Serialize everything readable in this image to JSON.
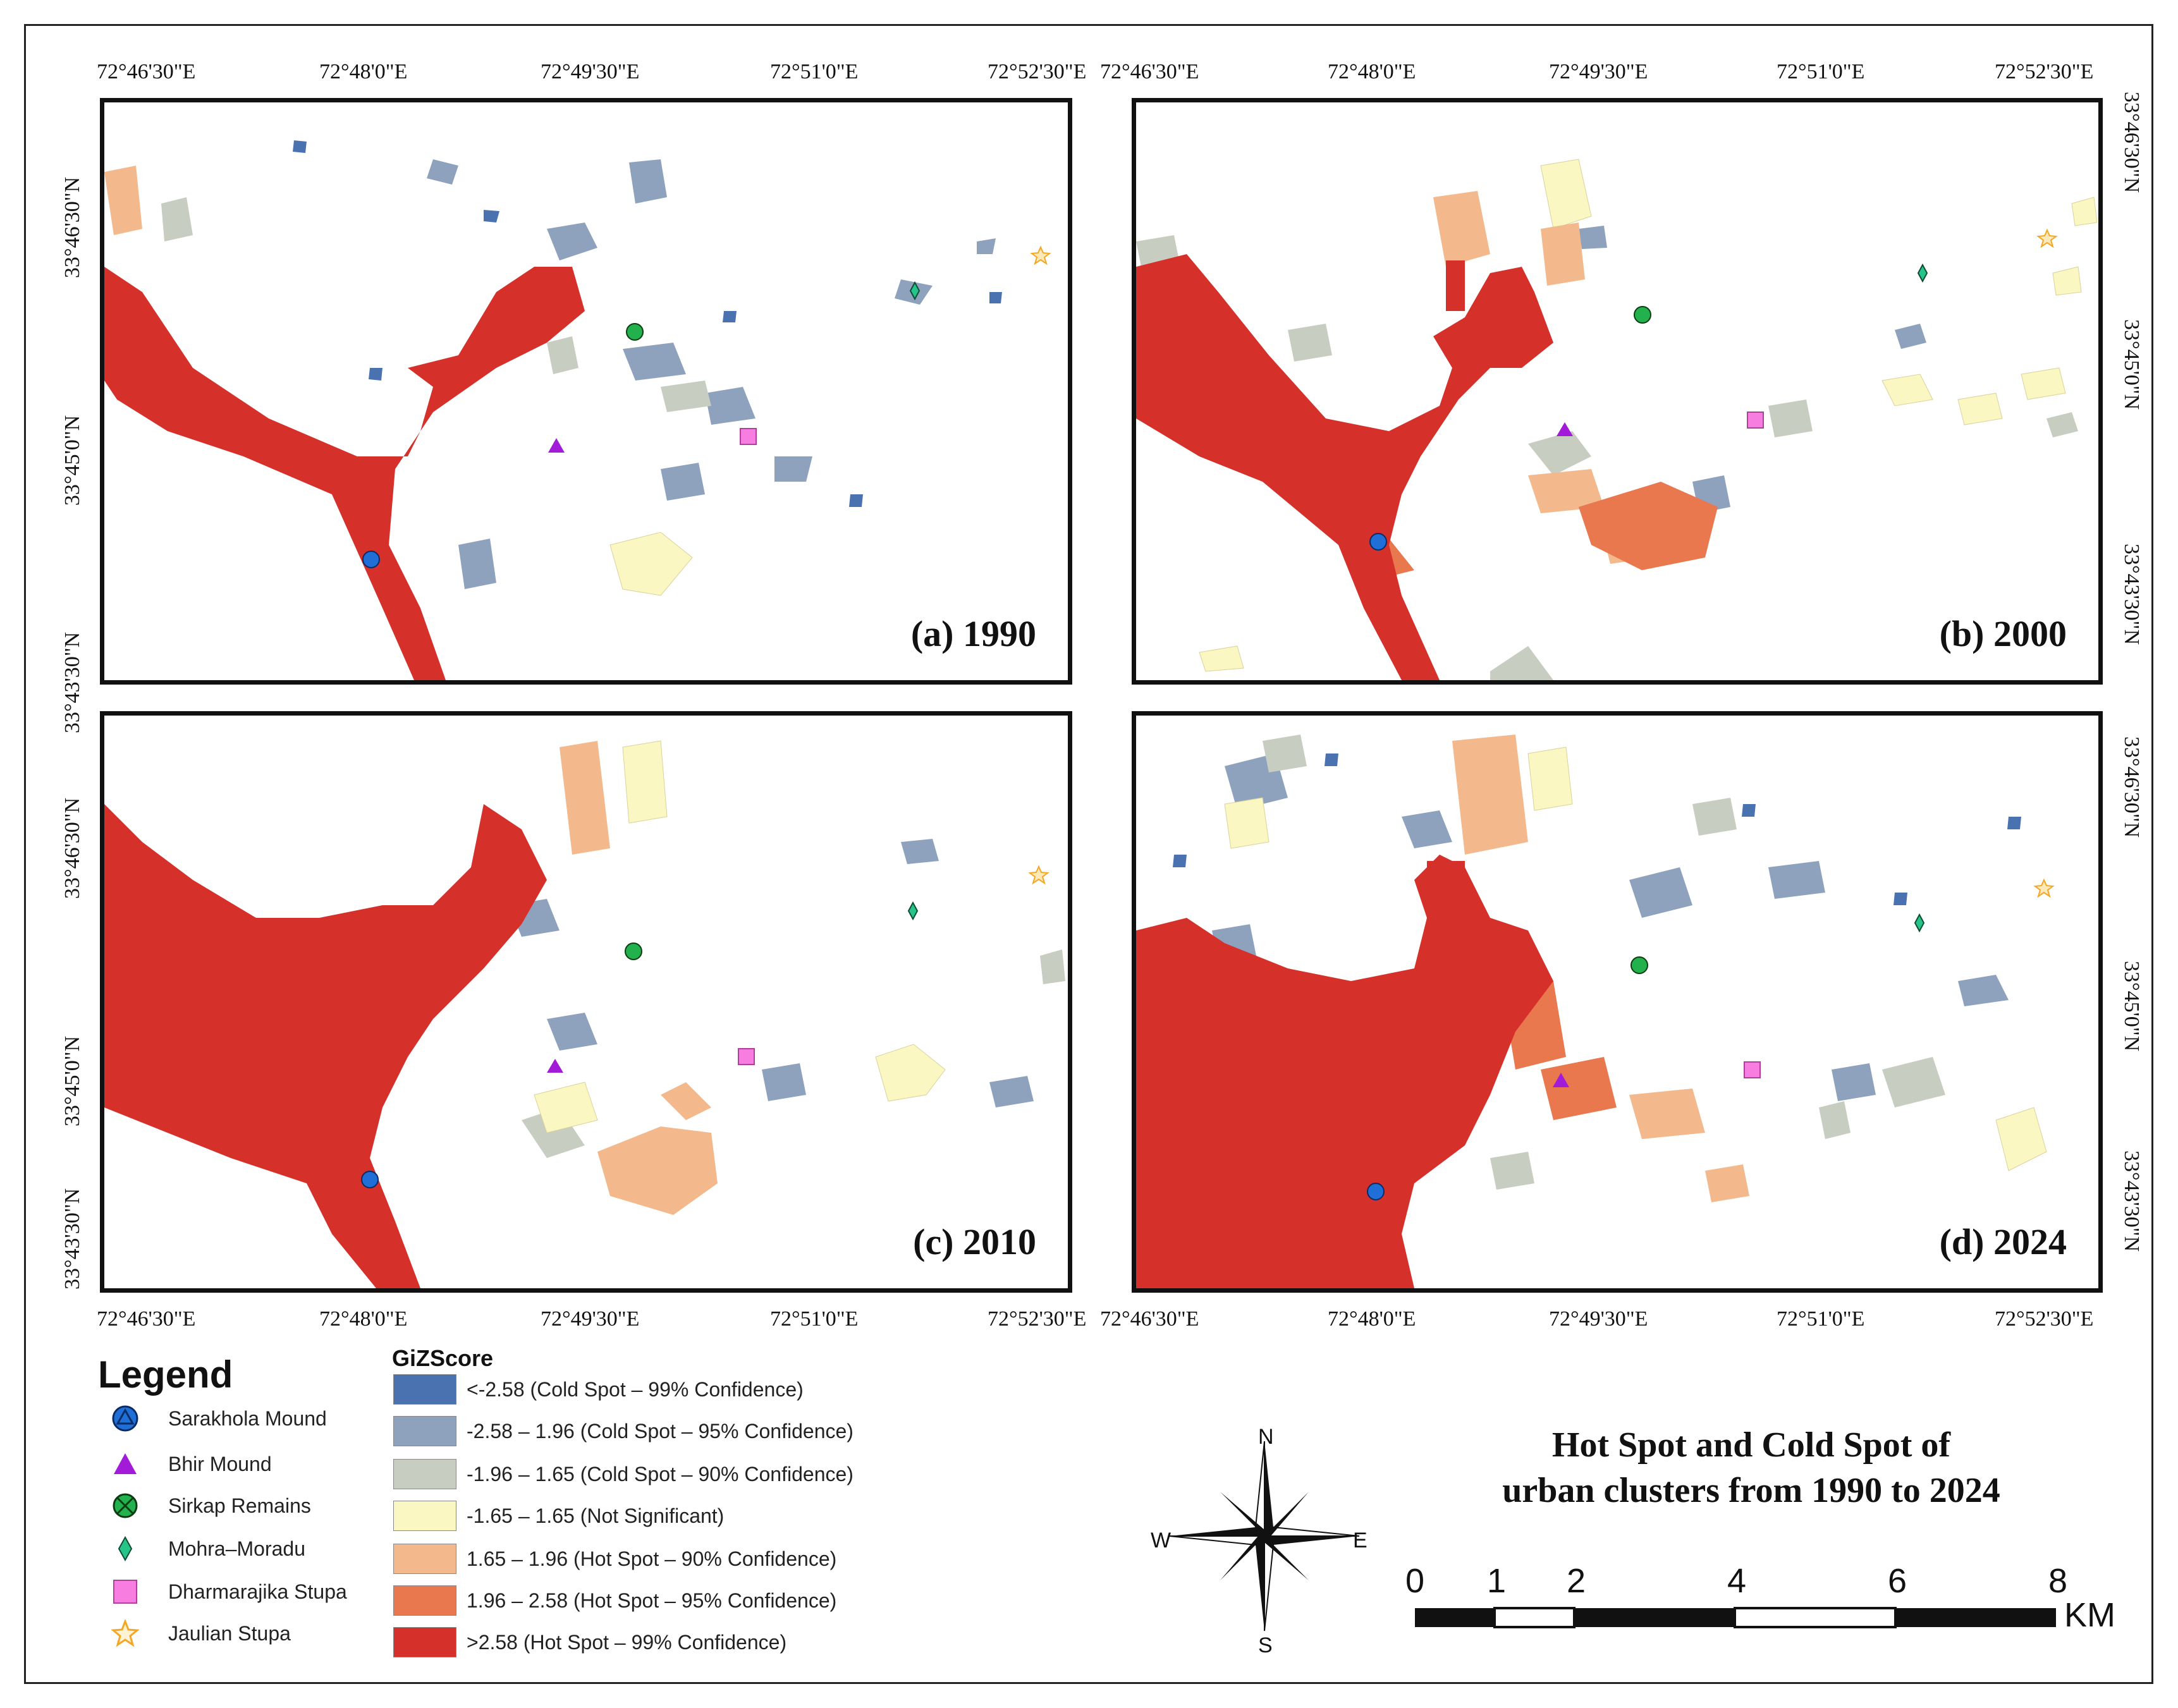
{
  "figure": {
    "title_line1": "Hot Spot and Cold Spot of",
    "title_line2": "urban clusters from 1990  to 2024"
  },
  "panels": [
    {
      "label": "(a) 1990"
    },
    {
      "label": "(b) 2000"
    },
    {
      "label": "(c) 2010"
    },
    {
      "label": "(d) 2024"
    }
  ],
  "axes": {
    "longitude_ticks": [
      "72°46'30\"E",
      "72°48'0\"E",
      "72°49'30\"E",
      "72°51'0\"E",
      "72°52'30\"E"
    ],
    "latitude_ticks": [
      "33°46'30\"N",
      "33°45'0\"N",
      "33°43'30\"N"
    ]
  },
  "legend": {
    "title": "Legend",
    "items": [
      {
        "label": "Sarakhola Mound",
        "icon": "sarakhola-mound-icon",
        "color": "#1f6fd6"
      },
      {
        "label": "Bhir Mound",
        "icon": "bhir-mound-icon",
        "color": "#a21bd8"
      },
      {
        "label": "Sirkap Remains",
        "icon": "sirkap-remains-icon",
        "color": "#22b14c"
      },
      {
        "label": "Mohra–Moradu",
        "icon": "mohra-moradu-icon",
        "color": "#27c48a"
      },
      {
        "label": "Dharmarajika Stupa",
        "icon": "dharmarajika-stupa-icon",
        "color": "#f77ee0"
      },
      {
        "label": "Jaulian Stupa",
        "icon": "jaulian-stupa-icon",
        "color": "#f5a623"
      }
    ]
  },
  "gizscore": {
    "title": "GiZScore",
    "classes": [
      {
        "label": "<-2.58 (Cold Spot – 99% Confidence)",
        "color": "#4a72b0"
      },
      {
        "label": "-2.58 – 1.96 (Cold Spot – 95% Confidence)",
        "color": "#8ea2bd"
      },
      {
        "label": "-1.96 – 1.65 (Cold Spot – 90% Confidence)",
        "color": "#c7cdc0"
      },
      {
        "label": "-1.65 – 1.65 (Not Significant)",
        "color": "#fbf7c3"
      },
      {
        "label": "1.65 – 1.96 (Hot Spot – 90% Confidence)",
        "color": "#f3b98c"
      },
      {
        "label": "1.96 – 2.58 (Hot Spot – 95% Confidence)",
        "color": "#e9784f"
      },
      {
        "label": ">2.58 (Hot Spot – 99% Confidence)",
        "color": "#d6302b"
      }
    ]
  },
  "north_arrow": {
    "n": "N",
    "s": "S",
    "e": "E",
    "w": "W"
  },
  "scale_bar": {
    "labels": [
      "0",
      "1",
      "2",
      "4",
      "6",
      "8"
    ],
    "unit": "KM"
  }
}
